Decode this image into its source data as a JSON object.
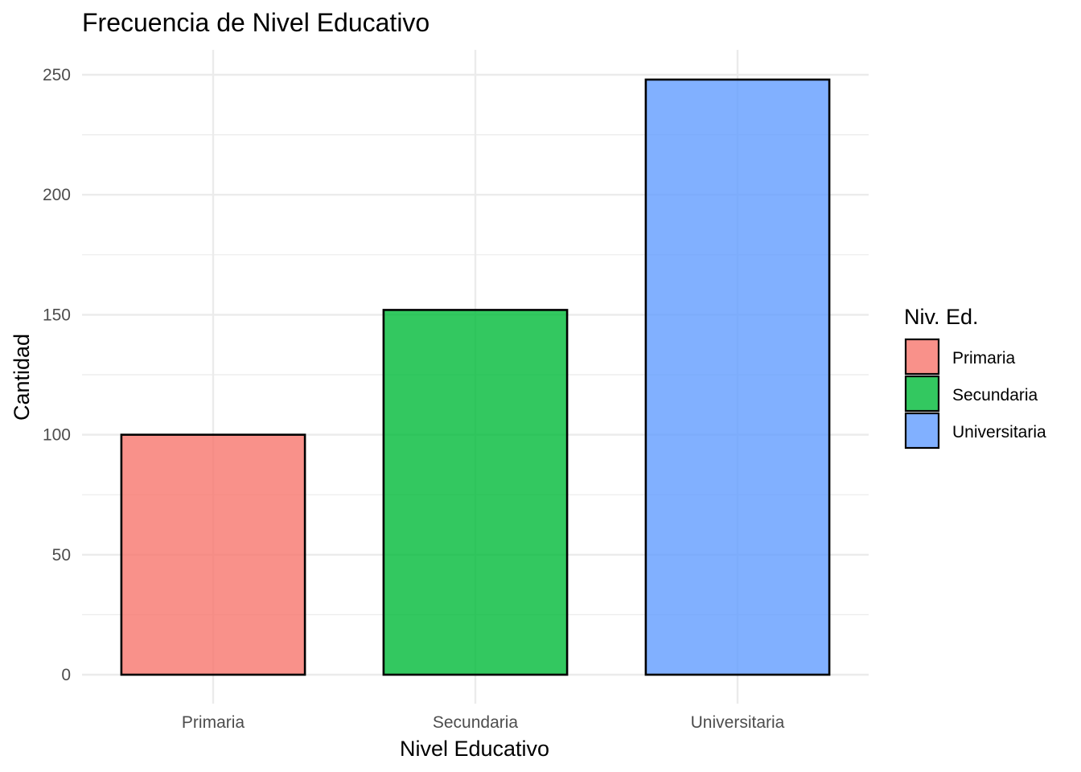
{
  "chart_data": {
    "type": "bar",
    "title": "Frecuencia de Nivel Educativo",
    "xlabel": "Nivel Educativo",
    "ylabel": "Cantidad",
    "categories": [
      "Primaria",
      "Secundaria",
      "Universitaria"
    ],
    "values": [
      100,
      152,
      248
    ],
    "colors": [
      "#F8766D",
      "#00BA38",
      "#619CFF"
    ],
    "bar_outline": "#000000",
    "bar_opacity": 0.8,
    "ylim": [
      0,
      260
    ],
    "yticks": [
      0,
      50,
      100,
      150,
      200,
      250
    ],
    "grid": true,
    "legend": {
      "title": "Niv. Ed.",
      "position": "right",
      "entries": [
        "Primaria",
        "Secundaria",
        "Universitaria"
      ]
    }
  }
}
